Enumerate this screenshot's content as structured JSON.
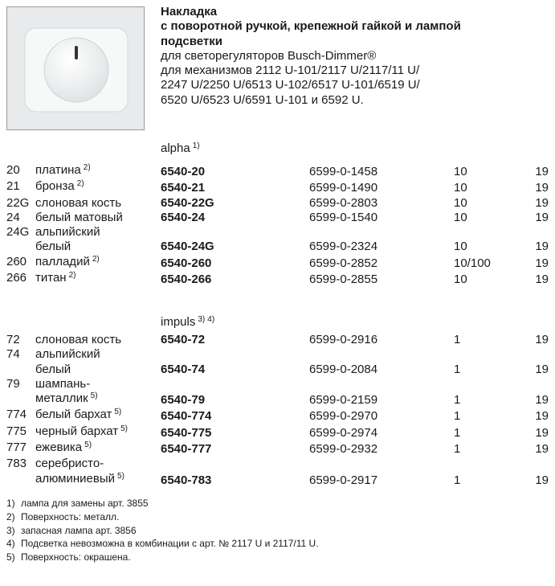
{
  "product": {
    "title_lines": [
      "Накладка",
      "с поворотной ручкой, крепежной гайкой и лампой",
      "подсветки"
    ],
    "description_lines": [
      "для светорегуляторов Busch-Dimmer®",
      "для механизмов 2112 U-101/2117 U/2117/11 U/",
      "2247 U/2250 U/6513 U-102/6517 U-101/6519 U/",
      "6520 U/6523 U/6591 U-101 и 6592 U."
    ]
  },
  "sections": [
    {
      "name": "alpha",
      "notes": [
        "1)"
      ],
      "rows": [
        {
          "code": "20",
          "name": [
            "платина"
          ],
          "note": "2)",
          "article": "6540-20",
          "order_no": "6599-0-1458",
          "pack": "10",
          "weight": "19"
        },
        {
          "code": "21",
          "name": [
            "бронза"
          ],
          "note": "2)",
          "article": "6540-21",
          "order_no": "6599-0-1490",
          "pack": "10",
          "weight": "19"
        },
        {
          "code": "22G",
          "name": [
            "слоновая кость"
          ],
          "note": null,
          "article": "6540-22G",
          "order_no": "6599-0-2803",
          "pack": "10",
          "weight": "19"
        },
        {
          "code": "24",
          "name": [
            "белый матовый"
          ],
          "note": null,
          "article": "6540-24",
          "order_no": "6599-0-1540",
          "pack": "10",
          "weight": "19"
        },
        {
          "code": "24G",
          "name": [
            "альпийский",
            "белый"
          ],
          "note": null,
          "article": "6540-24G",
          "order_no": "6599-0-2324",
          "pack": "10",
          "weight": "19"
        },
        {
          "code": "260",
          "name": [
            "палладий"
          ],
          "note": "2)",
          "article": "6540-260",
          "order_no": "6599-0-2852",
          "pack": "10/100",
          "weight": "19"
        },
        {
          "code": "266",
          "name": [
            "титан"
          ],
          "note": "2)",
          "article": "6540-266",
          "order_no": "6599-0-2855",
          "pack": "10",
          "weight": "19"
        }
      ]
    },
    {
      "name": "impuls",
      "notes": [
        "3)",
        "4)"
      ],
      "rows": [
        {
          "code": "72",
          "name": [
            "слоновая кость"
          ],
          "note": null,
          "article": "6540-72",
          "order_no": "6599-0-2916",
          "pack": "1",
          "weight": "19"
        },
        {
          "code": "74",
          "name": [
            "альпийский",
            "белый"
          ],
          "note": null,
          "article": "6540-74",
          "order_no": "6599-0-2084",
          "pack": "1",
          "weight": "19"
        },
        {
          "code": "79",
          "name": [
            "шампань-",
            "металлик"
          ],
          "note": "5)",
          "article": "6540-79",
          "order_no": "6599-0-2159",
          "pack": "1",
          "weight": "19"
        },
        {
          "code": "774",
          "name": [
            "белый бархат"
          ],
          "note": "5)",
          "article": "6540-774",
          "order_no": "6599-0-2970",
          "pack": "1",
          "weight": "19"
        },
        {
          "code": "775",
          "name": [
            "черный бархат"
          ],
          "note": "5)",
          "article": "6540-775",
          "order_no": "6599-0-2974",
          "pack": "1",
          "weight": "19"
        },
        {
          "code": "777",
          "name": [
            "ежевика"
          ],
          "note": "5)",
          "article": "6540-777",
          "order_no": "6599-0-2932",
          "pack": "1",
          "weight": "19"
        },
        {
          "code": "783",
          "name": [
            "серебристо-",
            "алюминиевый"
          ],
          "note": "5)",
          "article": "6540-783",
          "order_no": "6599-0-2917",
          "pack": "1",
          "weight": "19"
        }
      ]
    }
  ],
  "footnotes": [
    {
      "number": "1)",
      "text": "лампа для замены арт. 3855"
    },
    {
      "number": "2)",
      "text": "Поверхность: металл."
    },
    {
      "number": "3)",
      "text": "запасная лампа арт. 3856"
    },
    {
      "number": "4)",
      "text": "Подсветка невозможна в комбинации с арт. № 2117 U и 2117/11 U."
    },
    {
      "number": "5)",
      "text": "Поверхность: окрашена."
    }
  ]
}
